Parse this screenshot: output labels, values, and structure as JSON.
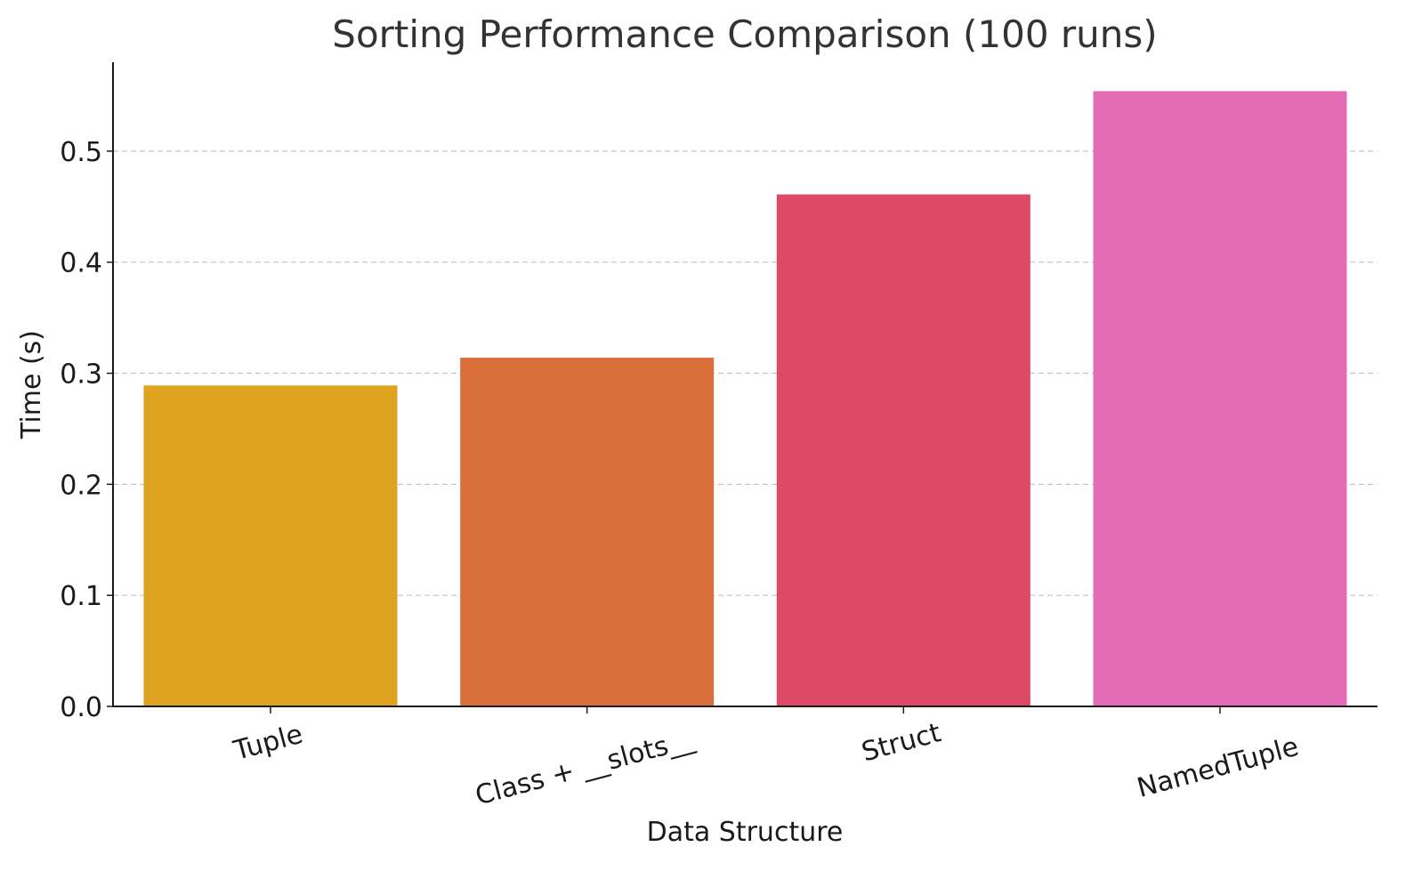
{
  "chart_data": {
    "type": "bar",
    "title": "Sorting Performance Comparison (100 runs)",
    "xlabel": "Data Structure",
    "ylabel": "Time (s)",
    "categories": [
      "Tuple",
      "Class + __slots__",
      "Struct",
      "NamedTuple"
    ],
    "values": [
      0.289,
      0.314,
      0.461,
      0.554
    ],
    "colors": [
      "#DEA31F",
      "#D9703B",
      "#DC4A65",
      "#E46BB6"
    ],
    "ylim": [
      0,
      0.58
    ],
    "yticks": [
      0.0,
      0.1,
      0.2,
      0.3,
      0.4,
      0.5
    ],
    "ytick_labels": [
      "0.0",
      "0.1",
      "0.2",
      "0.3",
      "0.4",
      "0.5"
    ],
    "grid": "y-dashed",
    "legend": "none"
  }
}
